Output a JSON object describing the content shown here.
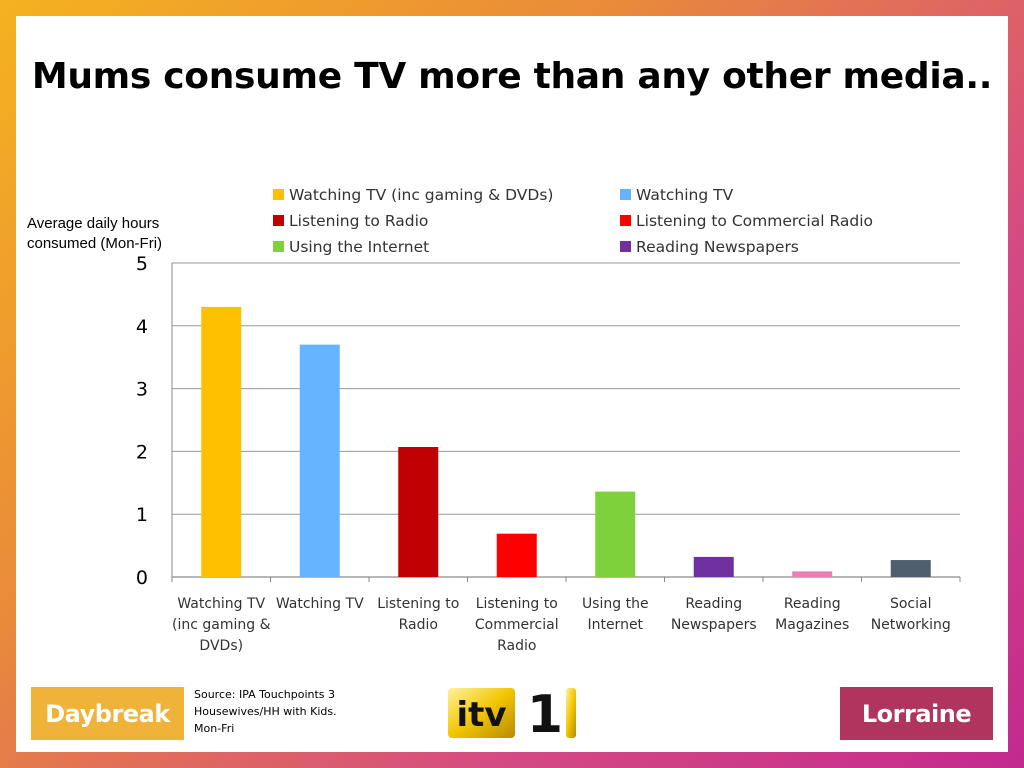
{
  "title": "Mums consume TV more than any other media..",
  "y_axis_label": "Average daily hours consumed (Mon-Fri)",
  "source": "Source: IPA Touchpoints 3 Housewives/HH with Kids. Mon-Fri",
  "logos": {
    "left": "Daybreak",
    "center": "itv 1",
    "right": "Lorraine"
  },
  "chart_data": {
    "type": "bar",
    "categories": [
      [
        "Watching TV",
        "(inc gaming &",
        "DVDs)"
      ],
      [
        "Watching TV"
      ],
      [
        "Listening to",
        "Radio"
      ],
      [
        "Listening to",
        "Commercial",
        "Radio"
      ],
      [
        "Using the",
        "Internet"
      ],
      [
        "Reading",
        "Newspapers"
      ],
      [
        "Reading",
        "Magazines"
      ],
      [
        "Social",
        "Networking"
      ]
    ],
    "values": [
      4.3,
      3.7,
      2.07,
      0.69,
      1.36,
      0.32,
      0.09,
      0.27
    ],
    "colors": [
      "#ffc000",
      "#66b3ff",
      "#c00000",
      "#ff0000",
      "#7fd13b",
      "#7030a0",
      "#e97fb5",
      "#4f5f6f"
    ],
    "ylim": [
      0,
      5
    ],
    "yticks": [
      0,
      1,
      2,
      3,
      4,
      5
    ],
    "grid": true,
    "legend_position": "top",
    "legend": [
      {
        "label": "Watching TV (inc gaming & DVDs)",
        "color": "#ffc000"
      },
      {
        "label": "Watching TV",
        "color": "#66b3ff"
      },
      {
        "label": "Listening to Radio",
        "color": "#c00000"
      },
      {
        "label": "Listening to Commercial Radio",
        "color": "#ff0000"
      },
      {
        "label": "Using the Internet",
        "color": "#7fd13b"
      },
      {
        "label": "Reading Newspapers",
        "color": "#7030a0"
      }
    ]
  }
}
